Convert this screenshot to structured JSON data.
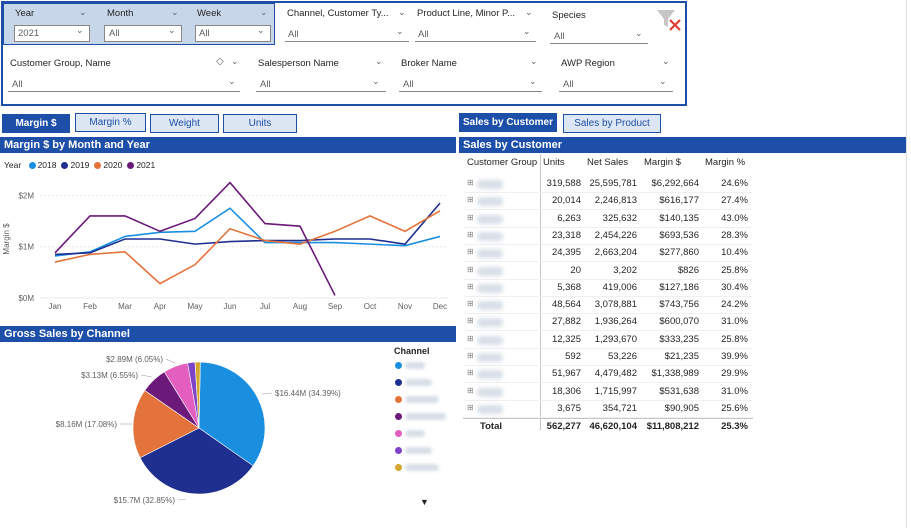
{
  "filters": {
    "year": {
      "label": "Year",
      "value": "2021"
    },
    "month": {
      "label": "Month",
      "value": "All"
    },
    "week": {
      "label": "Week",
      "value": "All"
    },
    "channel": {
      "label": "Channel, Customer Ty...",
      "value": "All"
    },
    "product_line": {
      "label": "Product Line, Minor P...",
      "value": "All"
    },
    "species": {
      "label": "Species",
      "value": "All"
    },
    "customer_group": {
      "label": "Customer Group, Name",
      "value": "All"
    },
    "salesperson": {
      "label": "Salesperson Name",
      "value": "All"
    },
    "broker": {
      "label": "Broker Name",
      "value": "All"
    },
    "awp_region": {
      "label": "AWP Region",
      "value": "All"
    }
  },
  "buttons": {
    "margin_dollar": "Margin $",
    "margin_pct": "Margin %",
    "weight": "Weight",
    "units": "Units",
    "sales_by_customer": "Sales by Customer",
    "sales_by_product": "Sales by Product"
  },
  "line_chart_title": "Margin $ by Month and Year",
  "pie_chart_title": "Gross Sales by Channel",
  "table_title": "Sales by Customer",
  "table": {
    "columns": [
      "Customer Group",
      "Units",
      "Net Sales",
      "Margin $",
      "Margin %"
    ],
    "rows": [
      {
        "units": "319,588",
        "net_sales": "25,595,781",
        "margin": "$6,292,664",
        "margin_pct": "24.6%"
      },
      {
        "units": "20,014",
        "net_sales": "2,246,813",
        "margin": "$616,177",
        "margin_pct": "27.4%"
      },
      {
        "units": "6,263",
        "net_sales": "325,632",
        "margin": "$140,135",
        "margin_pct": "43.0%"
      },
      {
        "units": "23,318",
        "net_sales": "2,454,226",
        "margin": "$693,536",
        "margin_pct": "28.3%"
      },
      {
        "units": "24,395",
        "net_sales": "2,663,204",
        "margin": "$277,860",
        "margin_pct": "10.4%"
      },
      {
        "units": "20",
        "net_sales": "3,202",
        "margin": "$826",
        "margin_pct": "25.8%"
      },
      {
        "units": "5,368",
        "net_sales": "419,006",
        "margin": "$127,186",
        "margin_pct": "30.4%"
      },
      {
        "units": "48,564",
        "net_sales": "3,078,881",
        "margin": "$743,756",
        "margin_pct": "24.2%"
      },
      {
        "units": "27,882",
        "net_sales": "1,936,264",
        "margin": "$600,070",
        "margin_pct": "31.0%"
      },
      {
        "units": "12,325",
        "net_sales": "1,293,670",
        "margin": "$333,235",
        "margin_pct": "25.8%"
      },
      {
        "units": "592",
        "net_sales": "53,226",
        "margin": "$21,235",
        "margin_pct": "39.9%"
      },
      {
        "units": "51,967",
        "net_sales": "4,479,482",
        "margin": "$1,338,989",
        "margin_pct": "29.9%"
      },
      {
        "units": "18,306",
        "net_sales": "1,715,997",
        "margin": "$531,638",
        "margin_pct": "31.0%"
      },
      {
        "units": "3,675",
        "net_sales": "354,721",
        "margin": "$90,905",
        "margin_pct": "25.6%"
      }
    ],
    "total": {
      "label": "Total",
      "units": "562,277",
      "net_sales": "46,620,104",
      "margin": "$11,808,212",
      "margin_pct": "25.3%"
    }
  },
  "pie_legend_title": "Channel",
  "colors": {
    "accent": "#1e4fa8",
    "s2018": "#1a8fe0",
    "s2019": "#1f2f8f",
    "s2020": "#e3733a",
    "s2021": "#6b1a7a"
  },
  "chart_data": [
    {
      "type": "line",
      "title": "Margin $ by Month and Year",
      "ylabel": "Margin $",
      "xlabel": "",
      "categories": [
        "Jan",
        "Feb",
        "Mar",
        "Apr",
        "May",
        "Jun",
        "Jul",
        "Aug",
        "Sep",
        "Oct",
        "Nov",
        "Dec"
      ],
      "yticks": [
        "$0M",
        "$1M",
        "$2M"
      ],
      "ylim": [
        0,
        2.3
      ],
      "legend_title": "Year",
      "series": [
        {
          "name": "2018",
          "values": [
            0.82,
            0.9,
            1.2,
            1.28,
            1.3,
            1.75,
            1.08,
            1.08,
            1.08,
            1.05,
            1.02,
            1.2
          ]
        },
        {
          "name": "2019",
          "values": [
            0.85,
            0.88,
            1.15,
            1.15,
            1.05,
            1.1,
            1.12,
            1.12,
            1.15,
            1.15,
            1.05,
            1.85
          ]
        },
        {
          "name": "2020",
          "values": [
            0.7,
            0.85,
            0.9,
            0.28,
            0.65,
            1.35,
            1.12,
            1.05,
            1.3,
            1.6,
            1.3,
            1.7
          ]
        },
        {
          "name": "2021",
          "values": [
            0.88,
            1.6,
            1.6,
            1.3,
            1.55,
            2.25,
            1.45,
            1.4,
            0.05,
            null,
            null,
            null
          ]
        }
      ]
    },
    {
      "type": "pie",
      "title": "Gross Sales by Channel",
      "slices": [
        {
          "label": "$16.44M (34.39%)",
          "value": 34.39
        },
        {
          "label": "$15.7M (32.85%)",
          "value": 32.85
        },
        {
          "label": "$8.16M (17.08%)",
          "value": 17.08
        },
        {
          "label": "$3.13M (6.55%)",
          "value": 6.55
        },
        {
          "label": "$2.89M (6.05%)",
          "value": 6.05
        },
        {
          "label": "",
          "value": 1.8
        },
        {
          "label": "",
          "value": 1.28
        }
      ],
      "slice_colors": [
        "#1a8fe0",
        "#1f2f8f",
        "#e3733a",
        "#6b1a7a",
        "#e25fc0",
        "#7e43c9",
        "#d4a82e"
      ]
    }
  ]
}
